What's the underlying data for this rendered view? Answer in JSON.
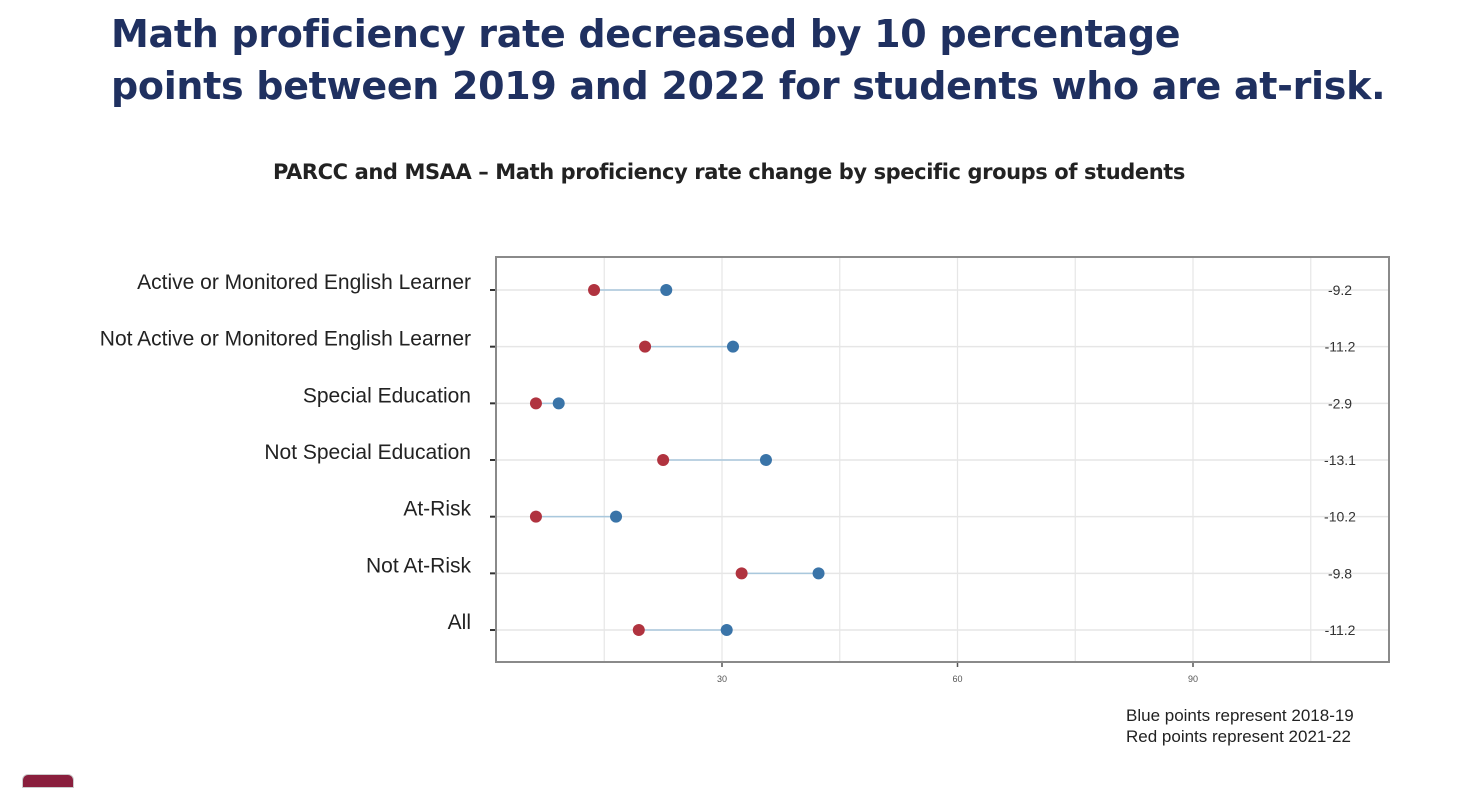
{
  "slide": {
    "title_lines": [
      "Math proficiency rate decreased by 10 percentage",
      "points between 2019 and 2022 for students who are at-risk."
    ],
    "subtitle": "PARCC and MSAA – Math proficiency rate change by specific groups of students",
    "legend": [
      "Blue points represent 2018-19",
      "Red points represent 2021-22"
    ]
  },
  "colors": {
    "title": "#1f3060",
    "blue_point": "#3a74a8",
    "red_point": "#b0333f",
    "connector": "#a9c8dd",
    "grid": "#e6e6e6",
    "frame": "#8a8a8a"
  },
  "chart_data": {
    "type": "scatter",
    "subtype": "dumbbell",
    "title": "PARCC and MSAA – Math proficiency rate change by specific groups of students",
    "xlabel": "",
    "ylabel": "",
    "xlim": [
      0,
      114
    ],
    "xticks": [
      30,
      60,
      90
    ],
    "minor_gridlines": [
      15,
      45,
      75,
      105
    ],
    "grid": true,
    "legend_placement": "bottom-right",
    "categories": [
      "Active or Monitored English Learner",
      "Not Active or Monitored English Learner",
      "Special Education",
      "Not Special Education",
      "At-Risk",
      "Not At-Risk",
      "All"
    ],
    "series": [
      {
        "name": "2018-19",
        "color": "blue",
        "values": [
          22.9,
          31.4,
          9.2,
          35.6,
          16.5,
          42.3,
          30.6
        ]
      },
      {
        "name": "2021-22",
        "color": "red",
        "values": [
          13.7,
          20.2,
          6.3,
          22.5,
          6.3,
          32.5,
          19.4
        ]
      }
    ],
    "difference_labels": [
      "-9.2",
      "-11.2",
      "-2.9",
      "-13.1",
      "-10.2",
      "-9.8",
      "-11.2"
    ]
  }
}
